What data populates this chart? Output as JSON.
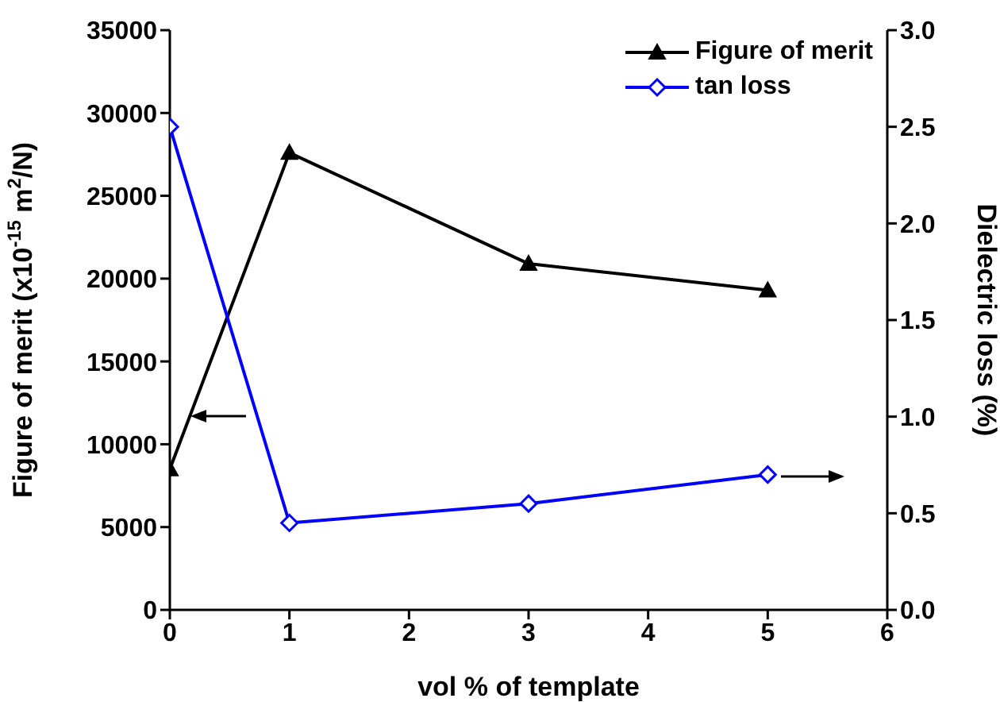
{
  "chart_data": {
    "type": "line",
    "xlabel": "vol % of template",
    "ylabel": "Figure of merit (x10$^{-15}$ m$^{2}$/N)",
    "y2label": "Dielectric loss (%)",
    "x": [
      0,
      1,
      3,
      5
    ],
    "series": [
      {
        "name": "Figure of merit",
        "color": "#000000",
        "values": [
          8500,
          27600,
          20900,
          19300
        ],
        "marker": "triangle"
      },
      {
        "name": "tan loss",
        "color": "#0000ff",
        "values": [
          2.5,
          0.45,
          0.55,
          0.7
        ],
        "marker": "diamond",
        "axis": "y2"
      }
    ],
    "xlim": [
      0,
      6
    ],
    "xticks": [
      0,
      1,
      2,
      3,
      4,
      5,
      6
    ],
    "ylim": [
      0,
      35000
    ],
    "yticks": [
      0,
      5000,
      10000,
      15000,
      20000,
      25000,
      30000,
      35000
    ],
    "y2lim": [
      0,
      3
    ],
    "y2ticks": [
      {
        "value": 0,
        "label": "0.0"
      },
      {
        "value": 0.5,
        "label": "0.5"
      },
      {
        "value": 1,
        "label": "1.0"
      },
      {
        "value": 1.5,
        "label": "1.5"
      },
      {
        "value": 2,
        "label": "2.0"
      },
      {
        "value": 2.5,
        "label": "2.5"
      },
      {
        "value": 3,
        "label": "3.0"
      }
    ],
    "grid": false,
    "legend": "top right",
    "line_style": "solid"
  }
}
